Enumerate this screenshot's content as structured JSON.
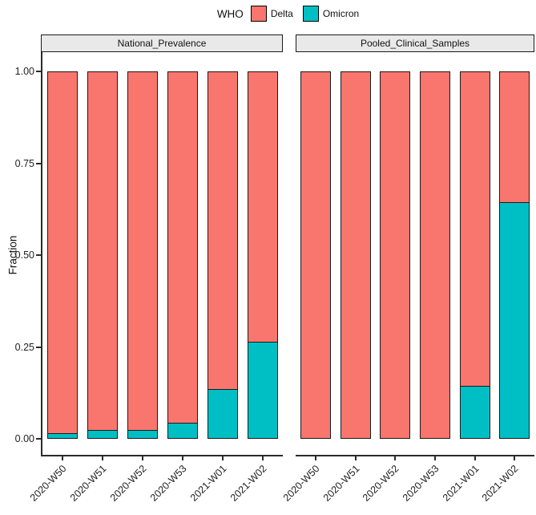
{
  "legend": {
    "title": "WHO",
    "items": [
      {
        "label": "Delta",
        "color": "#F8766D"
      },
      {
        "label": "Omicron",
        "color": "#00BFC4"
      }
    ]
  },
  "y_axis": {
    "title": "Fraction",
    "ticks": [
      {
        "label": "1.00",
        "value": 1.0
      },
      {
        "label": "0.75",
        "value": 0.75
      },
      {
        "label": "0.50",
        "value": 0.5
      },
      {
        "label": "0.25",
        "value": 0.25
      },
      {
        "label": "0.00",
        "value": 0.0
      }
    ]
  },
  "chart_data": {
    "type": "bar",
    "subtype": "stacked_fraction_faceted",
    "title": "",
    "xlabel": "",
    "ylabel": "Fraction",
    "ylim": [
      0,
      1
    ],
    "grid": false,
    "legend_position": "top",
    "legend_title": "WHO",
    "categories": [
      "2020-W50",
      "2020-W51",
      "2020-W52",
      "2020-W53",
      "2021-W01",
      "2021-W02"
    ],
    "facets": [
      {
        "label": "National_Prevalence",
        "series": [
          {
            "name": "Delta",
            "color": "#F8766D",
            "values": [
              0.99,
              0.98,
              0.98,
              0.96,
              0.87,
              0.74
            ]
          },
          {
            "name": "Omicron",
            "color": "#00BFC4",
            "values": [
              0.01,
              0.02,
              0.02,
              0.04,
              0.13,
              0.26
            ]
          }
        ]
      },
      {
        "label": "Pooled_Clinical_Samples",
        "series": [
          {
            "name": "Delta",
            "color": "#F8766D",
            "values": [
              1.0,
              1.0,
              1.0,
              1.0,
              0.86,
              0.36
            ]
          },
          {
            "name": "Omicron",
            "color": "#00BFC4",
            "values": [
              0.0,
              0.0,
              0.0,
              0.0,
              0.14,
              0.64
            ]
          }
        ]
      }
    ]
  }
}
